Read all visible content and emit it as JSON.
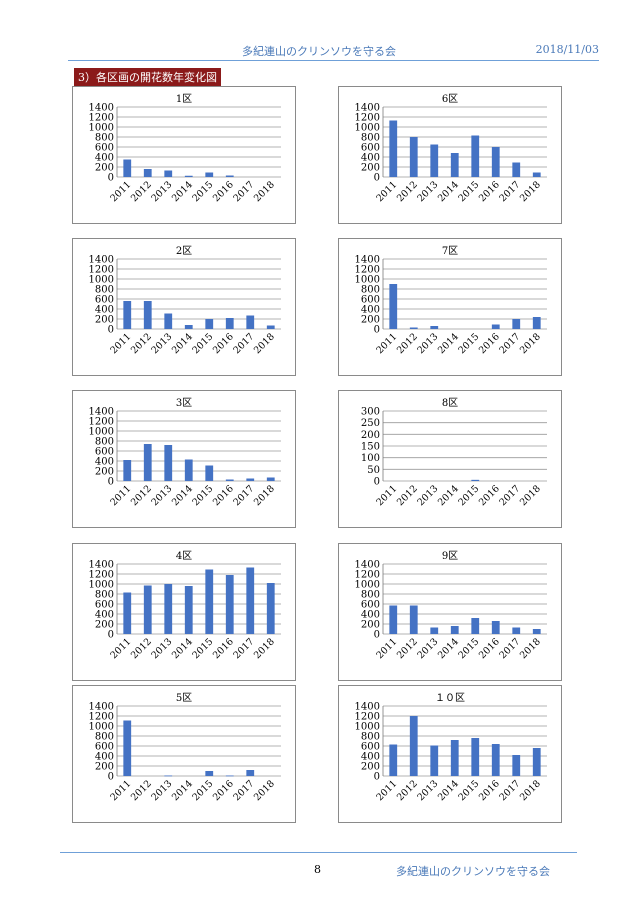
{
  "header": {
    "title": "多紀連山のクリンソウを守る会",
    "date": "2018/11/03"
  },
  "section_label": "3）各区画の開花数年変化図",
  "footer": {
    "page": "8",
    "org": "多紀連山のクリンソウを守る会"
  },
  "colors": {
    "bar": "#4472c4",
    "header_text": "#4a79b8",
    "section_bg": "#8b1a1a"
  },
  "chart_data": [
    {
      "type": "bar",
      "title": "1区",
      "categories": [
        "2011",
        "2012",
        "2013",
        "2014",
        "2015",
        "2016",
        "2017",
        "2018"
      ],
      "values": [
        350,
        160,
        130,
        25,
        90,
        30,
        0,
        0
      ],
      "ylim": [
        0,
        1400
      ],
      "yticks": [
        0,
        200,
        400,
        600,
        800,
        1000,
        1200,
        1400
      ],
      "grid": true
    },
    {
      "type": "bar",
      "title": "6区",
      "categories": [
        "2011",
        "2012",
        "2013",
        "2014",
        "2015",
        "2016",
        "2017",
        "2018"
      ],
      "values": [
        1130,
        800,
        650,
        480,
        830,
        600,
        290,
        90
      ],
      "ylim": [
        0,
        1400
      ],
      "yticks": [
        0,
        200,
        400,
        600,
        800,
        1000,
        1200,
        1400
      ],
      "grid": true
    },
    {
      "type": "bar",
      "title": "2区",
      "categories": [
        "2011",
        "2012",
        "2013",
        "2014",
        "2015",
        "2016",
        "2017",
        "2018"
      ],
      "values": [
        560,
        560,
        310,
        80,
        200,
        220,
        270,
        70
      ],
      "ylim": [
        0,
        1400
      ],
      "yticks": [
        0,
        200,
        400,
        600,
        800,
        1000,
        1200,
        1400
      ],
      "grid": true
    },
    {
      "type": "bar",
      "title": "7区",
      "categories": [
        "2011",
        "2012",
        "2013",
        "2014",
        "2015",
        "2016",
        "2017",
        "2018"
      ],
      "values": [
        900,
        30,
        60,
        0,
        0,
        90,
        200,
        240
      ],
      "ylim": [
        0,
        1400
      ],
      "yticks": [
        0,
        200,
        400,
        600,
        800,
        1000,
        1200,
        1400
      ],
      "grid": true
    },
    {
      "type": "bar",
      "title": "3区",
      "categories": [
        "2011",
        "2012",
        "2013",
        "2014",
        "2015",
        "2016",
        "2017",
        "2018"
      ],
      "values": [
        420,
        740,
        720,
        430,
        310,
        30,
        50,
        70
      ],
      "ylim": [
        0,
        1400
      ],
      "yticks": [
        0,
        200,
        400,
        600,
        800,
        1000,
        1200,
        1400
      ],
      "grid": true
    },
    {
      "type": "bar",
      "title": "8区",
      "categories": [
        "2011",
        "2012",
        "2013",
        "2014",
        "2015",
        "2016",
        "2017",
        "2018"
      ],
      "values": [
        0,
        0,
        0,
        0,
        5,
        0,
        0,
        0
      ],
      "ylim": [
        0,
        300
      ],
      "yticks": [
        0,
        50,
        100,
        150,
        200,
        250,
        300
      ],
      "grid": true
    },
    {
      "type": "bar",
      "title": "4区",
      "categories": [
        "2011",
        "2012",
        "2013",
        "2014",
        "2015",
        "2016",
        "2017",
        "2018"
      ],
      "values": [
        830,
        970,
        1000,
        960,
        1290,
        1180,
        1330,
        1020
      ],
      "ylim": [
        0,
        1400
      ],
      "yticks": [
        0,
        200,
        400,
        600,
        800,
        1000,
        1200,
        1400
      ],
      "grid": true
    },
    {
      "type": "bar",
      "title": "9区",
      "categories": [
        "2011",
        "2012",
        "2013",
        "2014",
        "2015",
        "2016",
        "2017",
        "2018"
      ],
      "values": [
        570,
        570,
        130,
        160,
        320,
        260,
        130,
        100
      ],
      "ylim": [
        0,
        1400
      ],
      "yticks": [
        0,
        200,
        400,
        600,
        800,
        1000,
        1200,
        1400
      ],
      "grid": true
    },
    {
      "type": "bar",
      "title": "5区",
      "categories": [
        "2011",
        "2012",
        "2013",
        "2014",
        "2015",
        "2016",
        "2017",
        "2018"
      ],
      "values": [
        1110,
        0,
        10,
        0,
        100,
        10,
        120,
        0
      ],
      "ylim": [
        0,
        1400
      ],
      "yticks": [
        0,
        200,
        400,
        600,
        800,
        1000,
        1200,
        1400
      ],
      "grid": true
    },
    {
      "type": "bar",
      "title": "１０区",
      "categories": [
        "2011",
        "2012",
        "2013",
        "2014",
        "2015",
        "2016",
        "2017",
        "2018"
      ],
      "values": [
        630,
        1200,
        610,
        720,
        760,
        640,
        420,
        560
      ],
      "ylim": [
        0,
        1400
      ],
      "yticks": [
        0,
        200,
        400,
        600,
        800,
        1000,
        1200,
        1400
      ],
      "grid": true
    }
  ]
}
